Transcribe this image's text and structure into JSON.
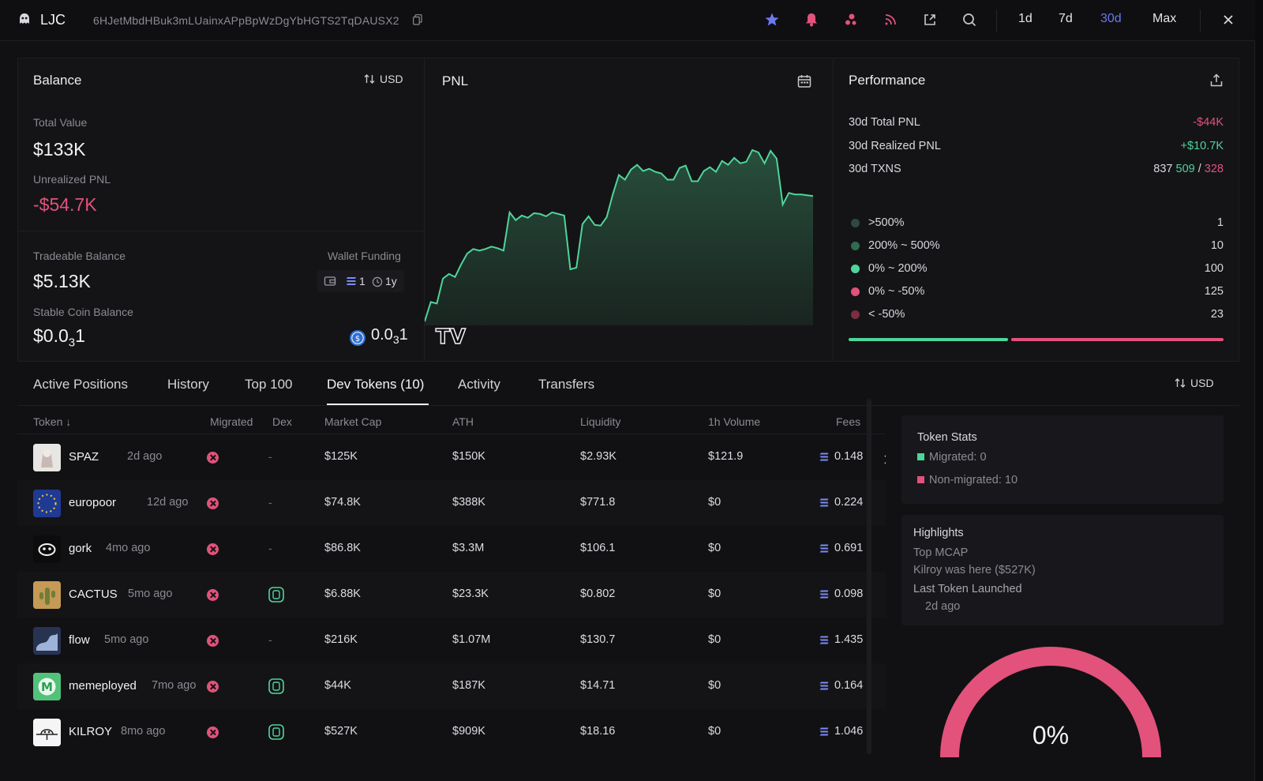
{
  "topbar": {
    "name": "LJC",
    "address": "6HJetMbdHBuk3mLUainxAPpBpWzDgYbHGTS2TqDAUSX2",
    "timeframes": [
      "1d",
      "7d",
      "30d",
      "Max"
    ],
    "active_timeframe": "30d",
    "icons": [
      "star-icon",
      "bell-icon",
      "bubbles-icon",
      "rss-icon",
      "external-link-icon",
      "search-icon",
      "close-icon"
    ]
  },
  "balance": {
    "title": "Balance",
    "currency_toggle": "USD",
    "total_value_label": "Total Value",
    "total_value": "$133K",
    "unrealized_label": "Unrealized PNL",
    "unrealized": "-$54.7K",
    "tradeable_label": "Tradeable Balance",
    "tradeable": "$5.13K",
    "wallet_funding_label": "Wallet Funding",
    "funding_count": "1",
    "funding_age": "1y",
    "stable_label": "Stable Coin Balance",
    "stable_main": "$0.0",
    "stable_sub": "3",
    "stable_tail": "1",
    "usdc_main": "0.0",
    "usdc_sub": "3",
    "usdc_tail": "1"
  },
  "pnl": {
    "title": "PNL",
    "watermark": "TV"
  },
  "chart_data": {
    "type": "area",
    "title": "PNL",
    "x": [
      0,
      1,
      2,
      3,
      4,
      5,
      6,
      7,
      8,
      9,
      10,
      11,
      12,
      13,
      14,
      15,
      16,
      17,
      18,
      19,
      20,
      21,
      22,
      23,
      24,
      25,
      26,
      27,
      28,
      29,
      30,
      31,
      32,
      33,
      34,
      35,
      36,
      37,
      38,
      39,
      40,
      41,
      42,
      43,
      44,
      45,
      46,
      47,
      48,
      49,
      50,
      51,
      52,
      53,
      54,
      55,
      56,
      57,
      58,
      59,
      60,
      61,
      62,
      63,
      64
    ],
    "values": [
      5,
      30,
      28,
      60,
      66,
      62,
      78,
      92,
      98,
      96,
      98,
      101,
      99,
      96,
      145,
      135,
      141,
      138,
      144,
      143,
      140,
      145,
      143,
      141,
      72,
      74,
      130,
      140,
      129,
      128,
      139,
      168,
      193,
      187,
      200,
      206,
      198,
      201,
      197,
      195,
      187,
      187,
      202,
      205,
      185,
      185,
      198,
      203,
      197,
      211,
      206,
      215,
      208,
      210,
      225,
      222,
      208,
      224,
      214,
      155,
      170,
      168,
      168,
      167,
      166
    ]
  },
  "performance": {
    "title": "Performance",
    "rows": [
      {
        "label": "30d Total PNL",
        "value": "-$44K"
      },
      {
        "label": "30d Realized PNL",
        "value": "+$10.7K"
      },
      {
        "label": "30d TXNS",
        "value": "837",
        "buys": "509",
        "sep": "/",
        "sells": "328"
      }
    ],
    "distribution": [
      {
        "label": ">500%",
        "value": "1",
        "color": "#2d4a3c"
      },
      {
        "label": "200% ~ 500%",
        "value": "10",
        "color": "#2f6b4f"
      },
      {
        "label": "0% ~ 200%",
        "value": "100",
        "color": "#4fd59a"
      },
      {
        "label": "0% ~ -50%",
        "value": "125",
        "color": "#e2527a"
      },
      {
        "label": "< -50%",
        "value": "23",
        "color": "#7a2e44"
      }
    ],
    "bar": {
      "green_fraction": 0.43,
      "red_fraction": 0.57
    }
  },
  "tabs": {
    "items": [
      "Active Positions",
      "History",
      "Top 100",
      "Dev Tokens (10)",
      "Activity",
      "Transfers"
    ],
    "active": "Dev Tokens (10)",
    "currency_toggle": "USD"
  },
  "table": {
    "headers": [
      "Token",
      "Migrated",
      "Dex",
      "Market Cap",
      "ATH",
      "Liquidity",
      "1h Volume",
      "Fees"
    ],
    "sort_arrow": "↓",
    "rows": [
      {
        "name": "SPAZ",
        "age": "2d ago",
        "dex": "-",
        "mcap": "$125K",
        "ath": "$150K",
        "liq": "$2.93K",
        "vol": "$121.9",
        "fees": "0.148"
      },
      {
        "name": "europoor",
        "age": "12d ago",
        "dex": "-",
        "mcap": "$74.8K",
        "ath": "$388K",
        "liq": "$771.8",
        "vol": "$0",
        "fees": "0.224"
      },
      {
        "name": "gork",
        "age": "4mo ago",
        "dex": "-",
        "mcap": "$86.8K",
        "ath": "$3.3M",
        "liq": "$106.1",
        "vol": "$0",
        "fees": "0.691"
      },
      {
        "name": "CACTUS",
        "age": "5mo ago",
        "dex": "icon",
        "mcap": "$6.88K",
        "ath": "$23.3K",
        "liq": "$0.802",
        "vol": "$0",
        "fees": "0.098"
      },
      {
        "name": "flow",
        "age": "5mo ago",
        "dex": "-",
        "mcap": "$216K",
        "ath": "$1.07M",
        "liq": "$130.7",
        "vol": "$0",
        "fees": "1.435"
      },
      {
        "name": "memeployed",
        "age": "7mo ago",
        "dex": "icon",
        "mcap": "$44K",
        "ath": "$187K",
        "liq": "$14.71",
        "vol": "$0",
        "fees": "0.164"
      },
      {
        "name": "KILROY",
        "age": "8mo ago",
        "dex": "icon",
        "mcap": "$527K",
        "ath": "$909K",
        "liq": "$18.16",
        "vol": "$0",
        "fees": "1.046"
      }
    ]
  },
  "token_stats": {
    "title": "Token Stats",
    "migrated": "Migrated: 0",
    "non_migrated": "Non-migrated: 10"
  },
  "highlights": {
    "title": "Highlights",
    "top_mcap_label": "Top MCAP",
    "top_mcap_value": "Kilroy was here ($527K)",
    "last_launch_label": "Last Token Launched",
    "last_launch_value": "2d ago"
  },
  "gauge": {
    "percent_label": "0%",
    "fraction": 0
  },
  "colors": {
    "accent": "#6b78f0",
    "green": "#4fd59a",
    "red": "#e2527a",
    "background": "#111114"
  }
}
